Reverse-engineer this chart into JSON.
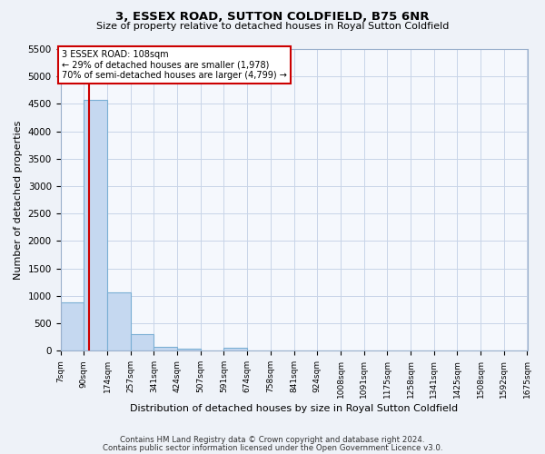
{
  "title": "3, ESSEX ROAD, SUTTON COLDFIELD, B75 6NR",
  "subtitle": "Size of property relative to detached houses in Royal Sutton Coldfield",
  "xlabel": "Distribution of detached houses by size in Royal Sutton Coldfield",
  "ylabel": "Number of detached properties",
  "bar_color": "#c5d8f0",
  "bar_edge_color": "#7aafd4",
  "property_line_color": "#cc0000",
  "property_value": 108,
  "annotation_text": "3 ESSEX ROAD: 108sqm\n← 29% of detached houses are smaller (1,978)\n70% of semi-detached houses are larger (4,799) →",
  "annotation_box_color": "#ffffff",
  "annotation_box_edge": "#cc0000",
  "bins": [
    7,
    90,
    174,
    257,
    341,
    424,
    507,
    591,
    674,
    758,
    841,
    924,
    1008,
    1091,
    1175,
    1258,
    1341,
    1425,
    1508,
    1592,
    1675
  ],
  "counts": [
    880,
    4570,
    1060,
    300,
    75,
    30,
    0,
    50,
    0,
    0,
    0,
    0,
    0,
    0,
    0,
    0,
    0,
    0,
    0,
    0
  ],
  "ylim": [
    0,
    5500
  ],
  "yticks": [
    0,
    500,
    1000,
    1500,
    2000,
    2500,
    3000,
    3500,
    4000,
    4500,
    5000,
    5500
  ],
  "tick_labels": [
    "7sqm",
    "90sqm",
    "174sqm",
    "257sqm",
    "341sqm",
    "424sqm",
    "507sqm",
    "591sqm",
    "674sqm",
    "758sqm",
    "841sqm",
    "924sqm",
    "1008sqm",
    "1091sqm",
    "1175sqm",
    "1258sqm",
    "1341sqm",
    "1425sqm",
    "1508sqm",
    "1592sqm",
    "1675sqm"
  ],
  "footnote1": "Contains HM Land Registry data © Crown copyright and database right 2024.",
  "footnote2": "Contains public sector information licensed under the Open Government Licence v3.0.",
  "bg_color": "#eef2f8",
  "plot_bg_color": "#f5f8fd",
  "grid_color": "#c8d4e8"
}
